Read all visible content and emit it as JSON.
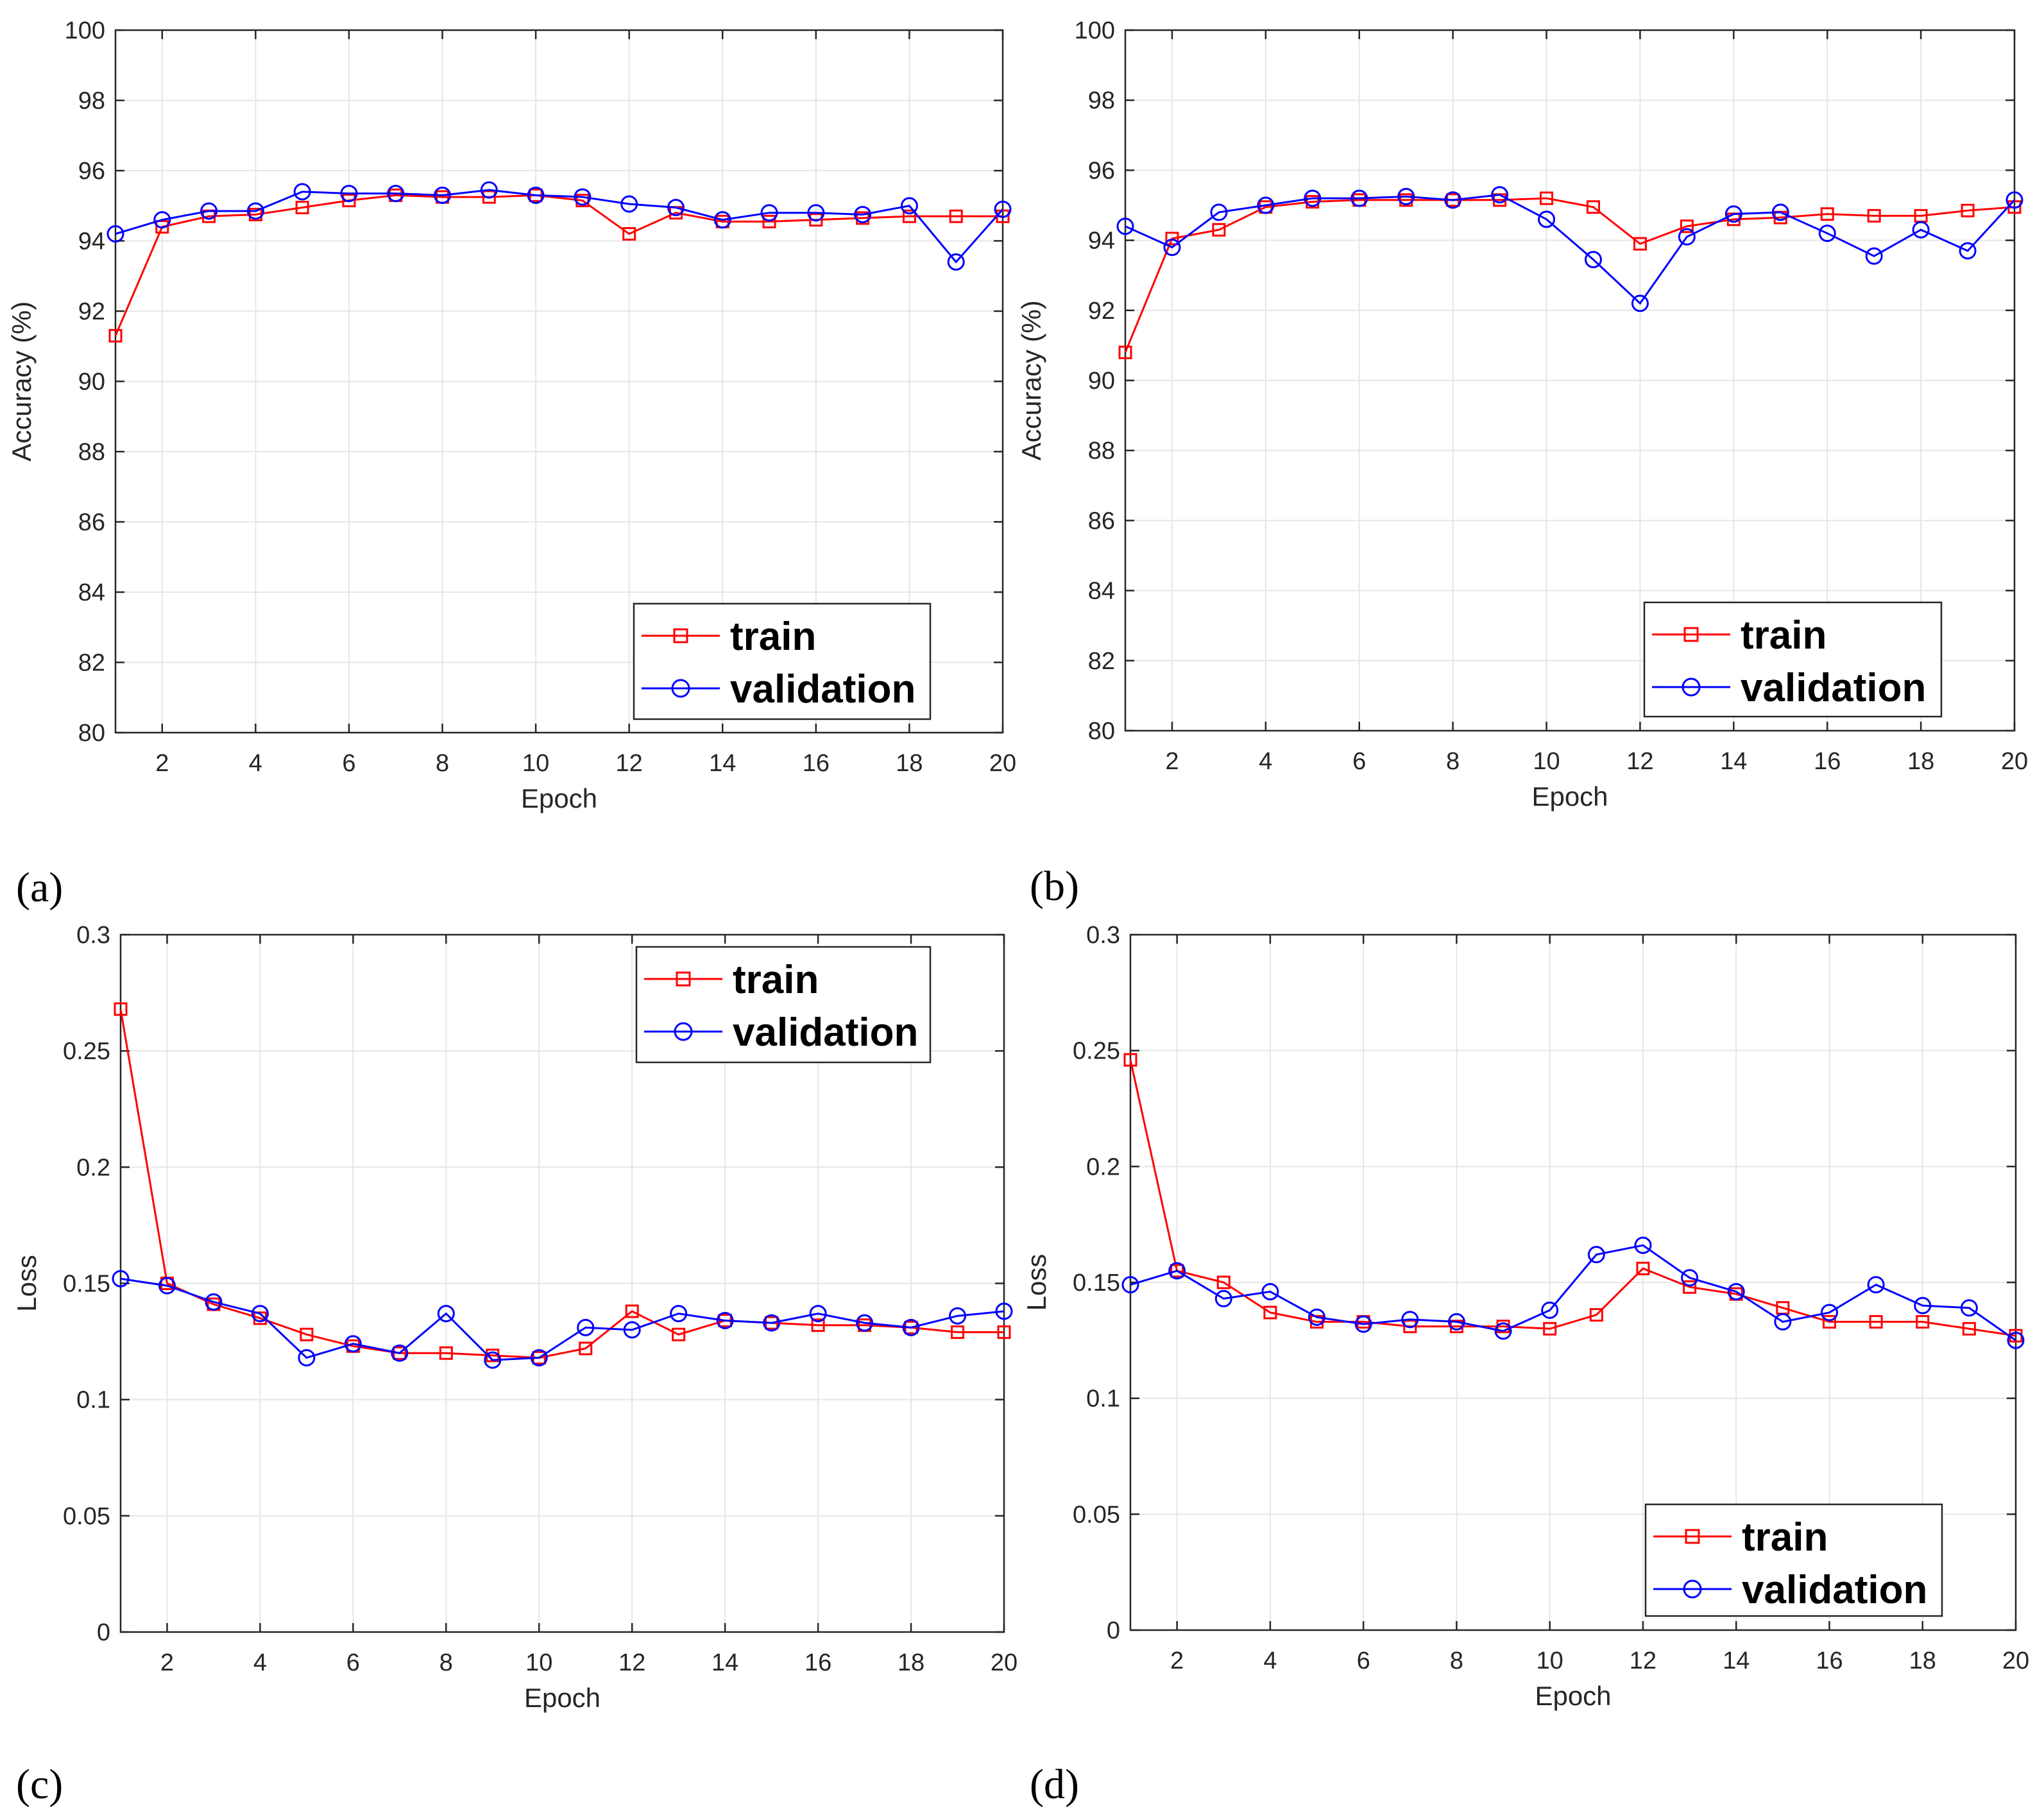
{
  "colors": {
    "train": "#ff0000",
    "validation": "#0000ff",
    "grid": "#e6e6e6",
    "axis": "#262626"
  },
  "chart_data": [
    {
      "panel": "(a)",
      "type": "line",
      "xlabel": "Epoch",
      "ylabel": "Accuracy (%)",
      "xlim": [
        1,
        20
      ],
      "ylim": [
        80,
        100
      ],
      "xticks": [
        2,
        4,
        6,
        8,
        10,
        12,
        14,
        16,
        18,
        20
      ],
      "yticks": [
        80,
        82,
        84,
        86,
        88,
        90,
        92,
        94,
        96,
        98,
        100
      ],
      "ytick_labels": [
        "80",
        "82",
        "84",
        "86",
        "88",
        "90",
        "92",
        "94",
        "96",
        "98",
        "100"
      ],
      "grid": true,
      "legend_position": "bottom-right",
      "x": [
        1,
        2,
        3,
        4,
        5,
        6,
        7,
        8,
        9,
        10,
        11,
        12,
        13,
        14,
        15,
        16,
        17,
        18,
        19,
        20
      ],
      "series": [
        {
          "name": "train",
          "marker": "square",
          "color": "#ff0000",
          "values": [
            91.3,
            94.4,
            94.7,
            94.75,
            94.95,
            95.15,
            95.3,
            95.25,
            95.25,
            95.3,
            95.15,
            94.2,
            94.8,
            94.55,
            94.55,
            94.6,
            94.65,
            94.7,
            94.7,
            94.7
          ]
        },
        {
          "name": "validation",
          "marker": "circle",
          "color": "#0000ff",
          "values": [
            94.2,
            94.6,
            94.85,
            94.85,
            95.4,
            95.35,
            95.35,
            95.3,
            95.45,
            95.3,
            95.25,
            95.05,
            94.95,
            94.6,
            94.8,
            94.8,
            94.75,
            95.0,
            93.4,
            94.9
          ]
        }
      ]
    },
    {
      "panel": "(b)",
      "type": "line",
      "xlabel": "Epoch",
      "ylabel": "Accuracy (%)",
      "xlim": [
        1,
        20
      ],
      "ylim": [
        80,
        100
      ],
      "xticks": [
        2,
        4,
        6,
        8,
        10,
        12,
        14,
        16,
        18,
        20
      ],
      "yticks": [
        80,
        82,
        84,
        86,
        88,
        90,
        92,
        94,
        96,
        98,
        100
      ],
      "ytick_labels": [
        "80",
        "82",
        "84",
        "86",
        "88",
        "90",
        "92",
        "94",
        "96",
        "98",
        "100"
      ],
      "grid": true,
      "legend_position": "bottom-right",
      "x": [
        1,
        2,
        3,
        4,
        5,
        6,
        7,
        8,
        9,
        10,
        11,
        12,
        13,
        14,
        15,
        16,
        17,
        18,
        19,
        20
      ],
      "series": [
        {
          "name": "train",
          "marker": "square",
          "color": "#ff0000",
          "values": [
            90.8,
            94.05,
            94.3,
            94.95,
            95.1,
            95.15,
            95.15,
            95.15,
            95.15,
            95.2,
            94.95,
            93.9,
            94.4,
            94.6,
            94.65,
            94.75,
            94.7,
            94.7,
            94.85,
            94.95
          ]
        },
        {
          "name": "validation",
          "marker": "circle",
          "color": "#0000ff",
          "values": [
            94.4,
            93.8,
            94.8,
            95.0,
            95.2,
            95.2,
            95.25,
            95.15,
            95.3,
            94.6,
            93.45,
            92.2,
            94.1,
            94.75,
            94.8,
            94.2,
            93.55,
            94.3,
            93.7,
            95.15
          ]
        }
      ]
    },
    {
      "panel": "(c)",
      "type": "line",
      "xlabel": "Epoch",
      "ylabel": "Loss",
      "xlim": [
        1,
        20
      ],
      "ylim": [
        0,
        0.3
      ],
      "xticks": [
        2,
        4,
        6,
        8,
        10,
        12,
        14,
        16,
        18,
        20
      ],
      "yticks": [
        0,
        0.05,
        0.1,
        0.15,
        0.2,
        0.25,
        0.3
      ],
      "ytick_labels": [
        "0",
        "0.05",
        "0.1",
        "0.15",
        "0.2",
        "0.25",
        "0.3"
      ],
      "grid": true,
      "legend_position": "top-right",
      "x": [
        1,
        2,
        3,
        4,
        5,
        6,
        7,
        8,
        9,
        10,
        11,
        12,
        13,
        14,
        15,
        16,
        17,
        18,
        19,
        20
      ],
      "series": [
        {
          "name": "train",
          "marker": "square",
          "color": "#ff0000",
          "values": [
            0.268,
            0.15,
            0.141,
            0.135,
            0.128,
            0.123,
            0.12,
            0.12,
            0.119,
            0.118,
            0.122,
            0.138,
            0.128,
            0.134,
            0.133,
            0.132,
            0.132,
            0.131,
            0.129,
            0.129
          ]
        },
        {
          "name": "validation",
          "marker": "circle",
          "color": "#0000ff",
          "values": [
            0.152,
            0.149,
            0.142,
            0.137,
            0.118,
            0.124,
            0.12,
            0.137,
            0.117,
            0.118,
            0.131,
            0.13,
            0.137,
            0.134,
            0.133,
            0.137,
            0.133,
            0.131,
            0.136,
            0.138
          ]
        }
      ]
    },
    {
      "panel": "(d)",
      "type": "line",
      "xlabel": "Epoch",
      "ylabel": "Loss",
      "xlim": [
        1,
        20
      ],
      "ylim": [
        0,
        0.3
      ],
      "xticks": [
        2,
        4,
        6,
        8,
        10,
        12,
        14,
        16,
        18,
        20
      ],
      "yticks": [
        0,
        0.05,
        0.1,
        0.15,
        0.2,
        0.25,
        0.3
      ],
      "ytick_labels": [
        "0",
        "0.05",
        "0.1",
        "0.15",
        "0.2",
        "0.25",
        "0.3"
      ],
      "grid": true,
      "legend_position": "bottom-right",
      "x": [
        1,
        2,
        3,
        4,
        5,
        6,
        7,
        8,
        9,
        10,
        11,
        12,
        13,
        14,
        15,
        16,
        17,
        18,
        19,
        20
      ],
      "series": [
        {
          "name": "train",
          "marker": "square",
          "color": "#ff0000",
          "values": [
            0.246,
            0.155,
            0.15,
            0.137,
            0.133,
            0.133,
            0.131,
            0.131,
            0.131,
            0.13,
            0.136,
            0.156,
            0.148,
            0.145,
            0.139,
            0.133,
            0.133,
            0.133,
            0.13,
            0.127
          ]
        },
        {
          "name": "validation",
          "marker": "circle",
          "color": "#0000ff",
          "values": [
            0.149,
            0.155,
            0.143,
            0.146,
            0.135,
            0.132,
            0.134,
            0.133,
            0.129,
            0.138,
            0.162,
            0.166,
            0.152,
            0.146,
            0.133,
            0.137,
            0.149,
            0.14,
            0.139,
            0.125
          ]
        }
      ]
    }
  ]
}
